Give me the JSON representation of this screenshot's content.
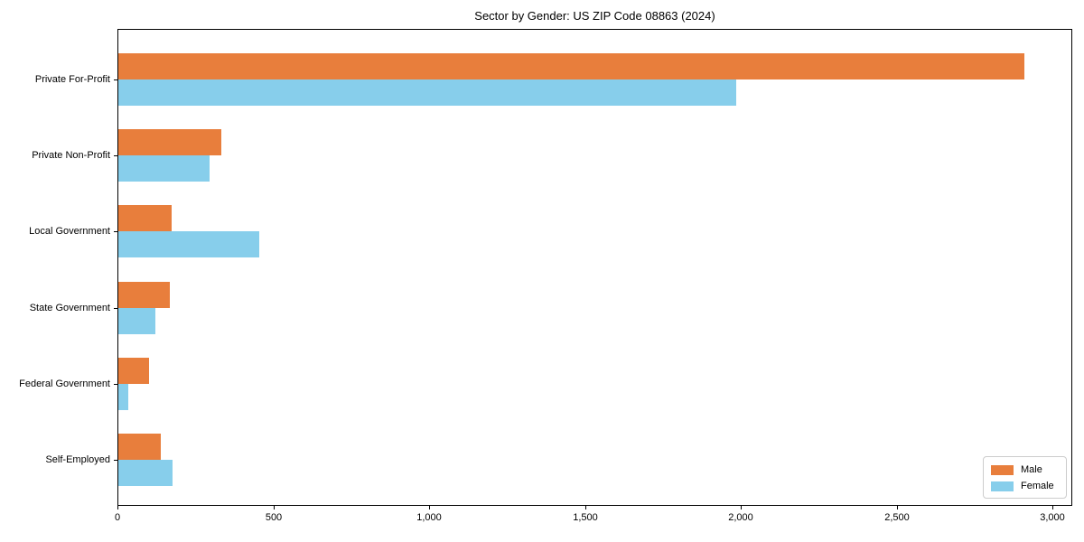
{
  "chart_data": {
    "type": "bar",
    "orientation": "horizontal",
    "title": "Sector by Gender: US ZIP Code 08863 (2024)",
    "categories": [
      "Private For-Profit",
      "Private Non-Profit",
      "Local Government",
      "State Government",
      "Federal Government",
      "Self-Employed"
    ],
    "series": [
      {
        "name": "Male",
        "color": "#E87E3C",
        "values": [
          2910,
          330,
          170,
          165,
          100,
          135
        ]
      },
      {
        "name": "Female",
        "color": "#87CEEB",
        "values": [
          1985,
          293,
          453,
          119,
          32,
          174
        ]
      }
    ],
    "xlabel": "",
    "ylabel": "",
    "xlim": [
      0,
      3060
    ],
    "x_ticks": [
      {
        "value": 0,
        "label": "0"
      },
      {
        "value": 500,
        "label": "500"
      },
      {
        "value": 1000,
        "label": "1,000"
      },
      {
        "value": 1500,
        "label": "1,500"
      },
      {
        "value": 2000,
        "label": "2,000"
      },
      {
        "value": 2500,
        "label": "2,500"
      },
      {
        "value": 3000,
        "label": "3,000"
      }
    ],
    "grid": false,
    "legend": {
      "position": "lower right",
      "entries": [
        "Male",
        "Female"
      ]
    }
  }
}
